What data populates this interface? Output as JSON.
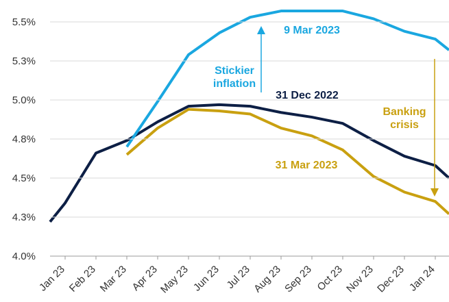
{
  "chart_data": {
    "type": "line",
    "categories": [
      null,
      "Jan 23",
      "Feb 23",
      "Mar 23",
      "Apr 23",
      "May 23",
      "Jun 23",
      "Jul 23",
      "Aug 23",
      "Sep 23",
      "Oct 23",
      "Nov 23",
      "Dec 23",
      "Jan 24",
      null
    ],
    "series": [
      {
        "name": "31 Dec 2022",
        "color": "#0d1f45",
        "values": [
          4.22,
          4.34,
          4.66,
          4.74,
          4.86,
          4.96,
          4.97,
          4.96,
          4.92,
          4.89,
          4.85,
          4.74,
          4.64,
          4.58,
          4.5
        ]
      },
      {
        "name": "9 Mar 2023",
        "color": "#1aa7e0",
        "values": [
          null,
          null,
          null,
          4.7,
          4.99,
          5.29,
          5.43,
          5.53,
          5.57,
          5.57,
          5.57,
          5.52,
          5.44,
          5.39,
          5.32
        ]
      },
      {
        "name": "31 Mar 2023",
        "color": "#c9a010",
        "values": [
          null,
          null,
          null,
          4.65,
          4.82,
          4.94,
          4.93,
          4.91,
          4.82,
          4.77,
          4.68,
          4.51,
          4.41,
          4.35,
          4.27
        ]
      }
    ],
    "annotations": [
      {
        "lines": [
          "Stickier",
          "inflation"
        ],
        "color": "#1aa7e0"
      },
      {
        "lines": [
          "Banking",
          "crisis"
        ],
        "color": "#c9a010"
      }
    ],
    "ylim": [
      4.0,
      5.6
    ],
    "yticks": [
      {
        "value": 4.0,
        "label": "4.0%"
      },
      {
        "value": 4.25,
        "label": "4.3%"
      },
      {
        "value": 4.5,
        "label": "4.5%"
      },
      {
        "value": 4.75,
        "label": "4.8%"
      },
      {
        "value": 5.0,
        "label": "5.0%"
      },
      {
        "value": 5.25,
        "label": "5.3%"
      },
      {
        "value": 5.5,
        "label": "5.5%"
      }
    ],
    "grid": true
  }
}
